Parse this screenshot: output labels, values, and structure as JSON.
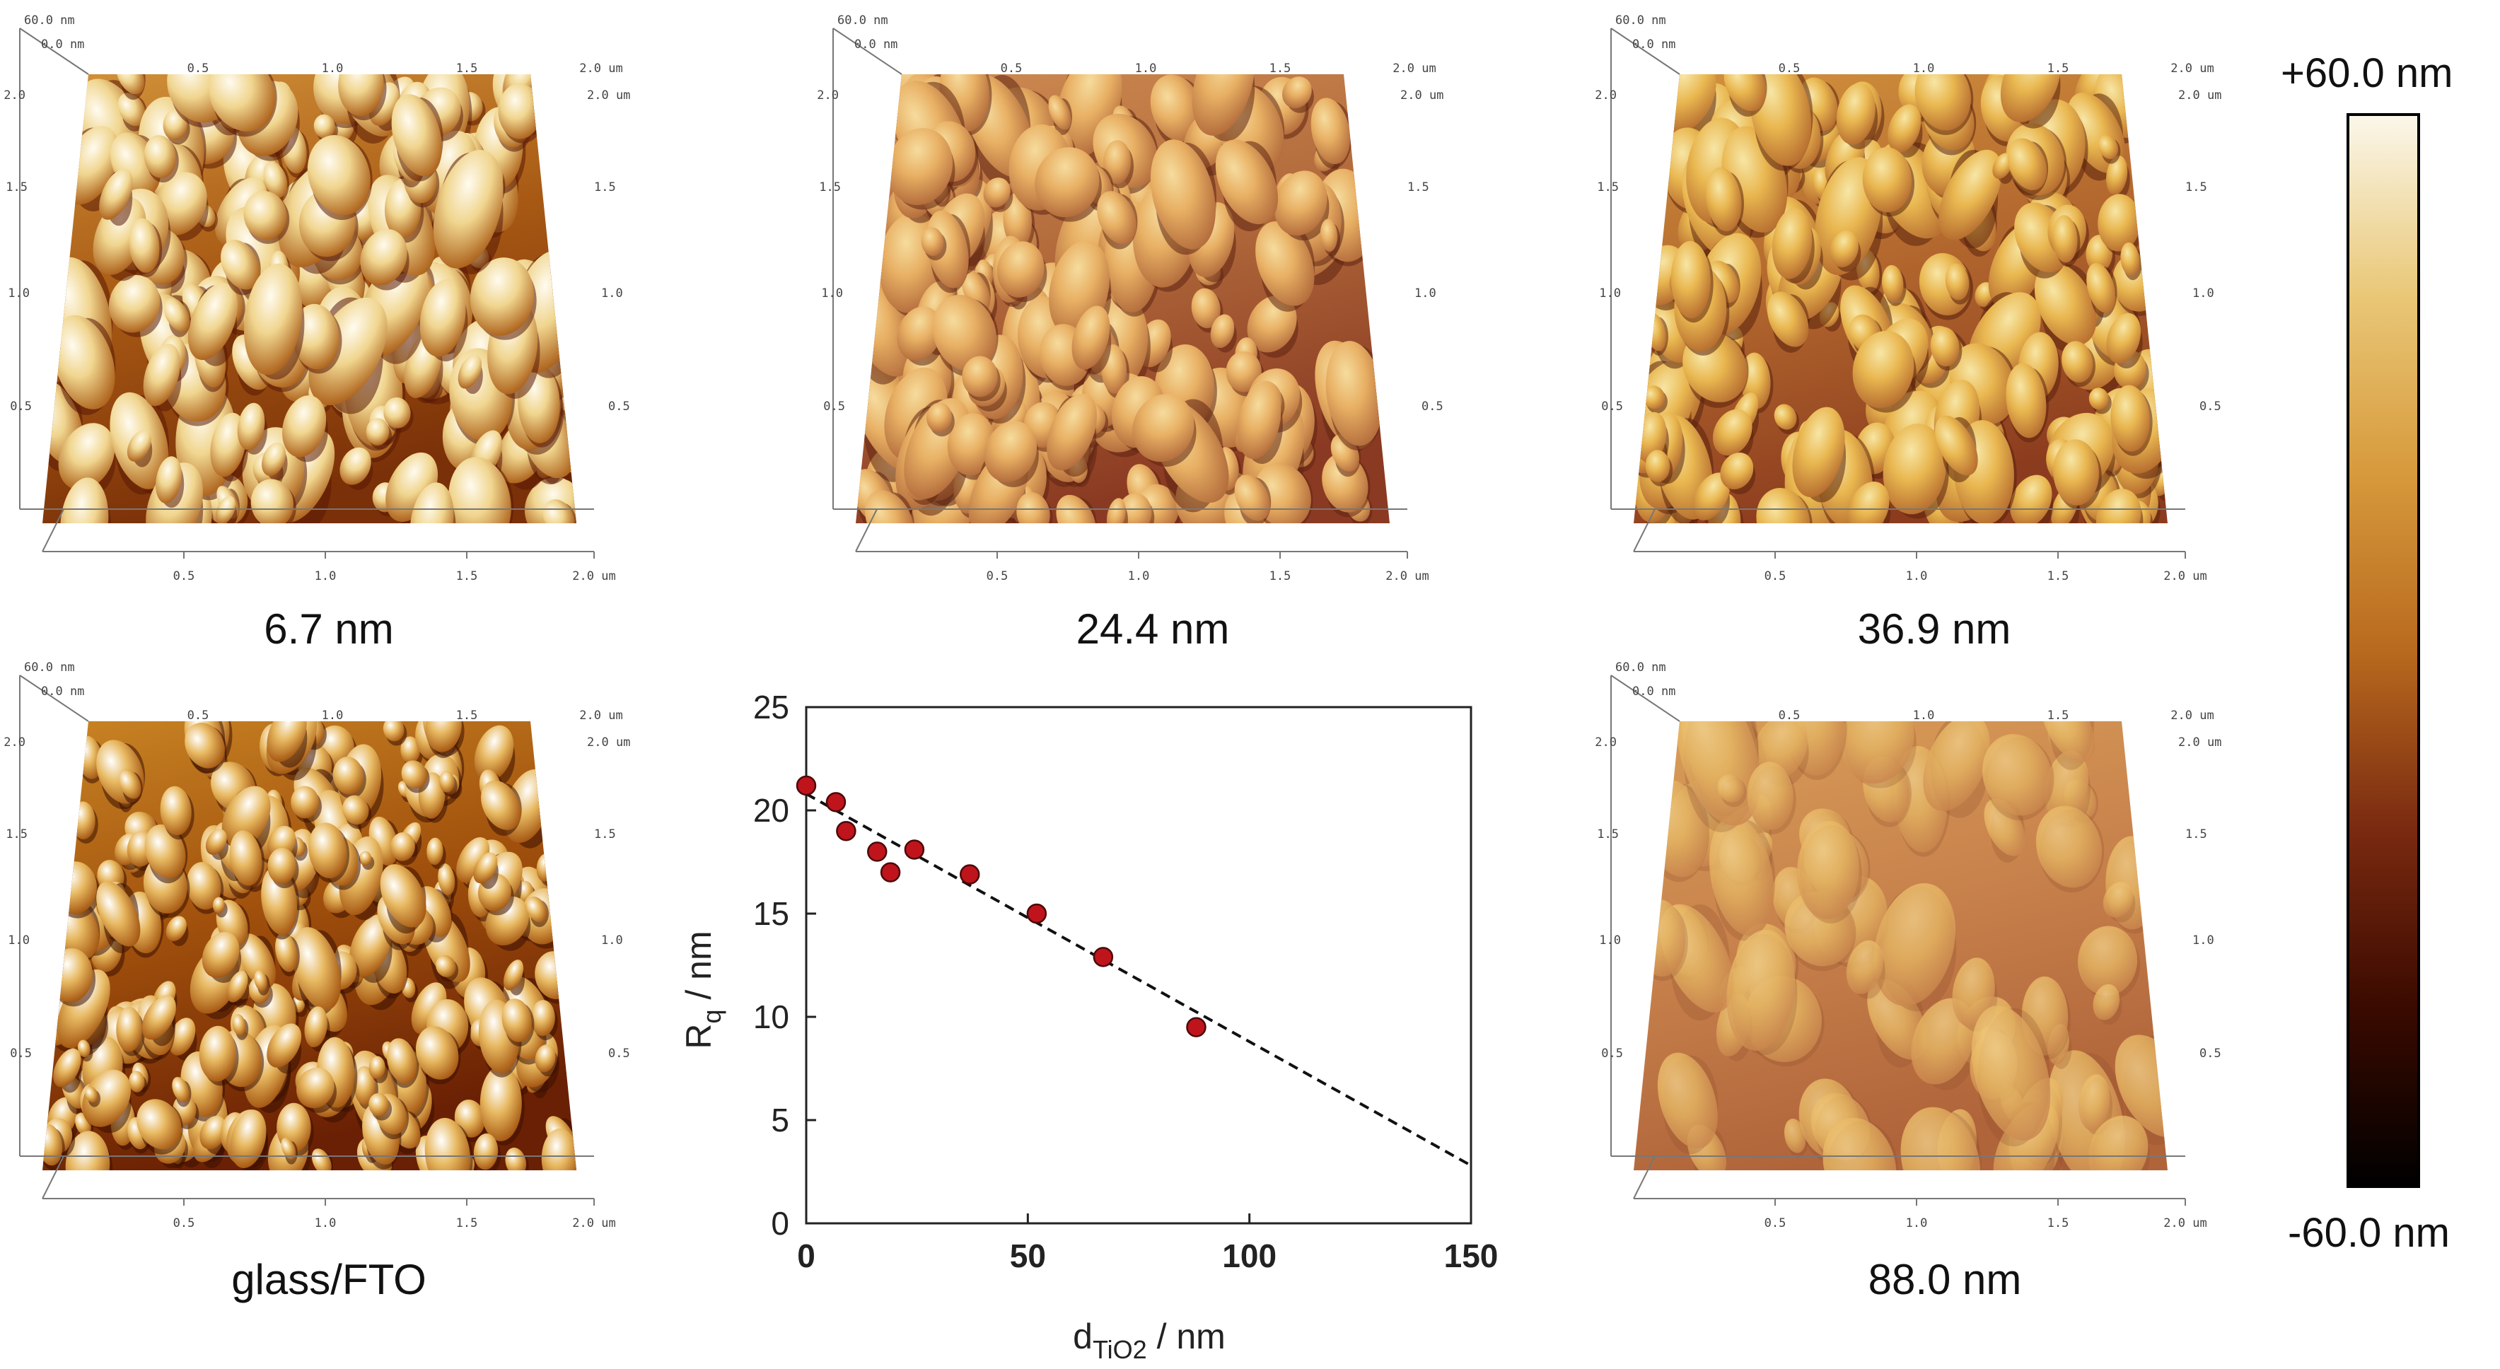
{
  "afm_panels": [
    {
      "id": "p67",
      "caption": "6.7 nm"
    },
    {
      "id": "p244",
      "caption": "24.4 nm"
    },
    {
      "id": "p369",
      "caption": "36.9 nm"
    },
    {
      "id": "pfto",
      "caption": "glass/FTO"
    },
    {
      "id": "p880",
      "caption": "88.0 nm"
    }
  ],
  "afm_axis": {
    "z_top": "60.0 nm",
    "z_zero": "0.0 nm",
    "y_ticks": [
      "0.5",
      "1.0",
      "1.5",
      "2.0"
    ],
    "y_unit": "um",
    "x_ticks": [
      "0.5",
      "1.0",
      "1.5",
      "2.0"
    ],
    "x_unit": "um"
  },
  "colorbar": {
    "max_label": "+60.0 nm",
    "min_label": "-60.0 nm",
    "colors": [
      "#000000",
      "#3a0a00",
      "#7a2a10",
      "#b86a1e",
      "#d79a3c",
      "#e9c878",
      "#fbf7ea"
    ]
  },
  "chart_data": {
    "type": "scatter",
    "title": "",
    "xlabel_main": "d",
    "xlabel_sub": "TiO2",
    "xlabel_unit": " / nm",
    "ylabel_main": "R",
    "ylabel_sub": "q",
    "ylabel_unit": " / nm",
    "xlim": [
      0,
      150
    ],
    "ylim": [
      0,
      25
    ],
    "x_ticks": [
      0,
      50,
      100,
      150
    ],
    "y_ticks": [
      0,
      5,
      10,
      15,
      20,
      25
    ],
    "points": [
      {
        "x": 0,
        "y": 21.2
      },
      {
        "x": 6.7,
        "y": 20.4
      },
      {
        "x": 9,
        "y": 19.0
      },
      {
        "x": 16,
        "y": 18.0
      },
      {
        "x": 19,
        "y": 17.0
      },
      {
        "x": 24.4,
        "y": 18.1
      },
      {
        "x": 36.9,
        "y": 16.9
      },
      {
        "x": 52,
        "y": 15.0
      },
      {
        "x": 67,
        "y": 12.9
      },
      {
        "x": 88,
        "y": 9.5
      }
    ],
    "fit_line": {
      "x": [
        0,
        150
      ],
      "y": [
        20.8,
        2.8
      ]
    },
    "marker_color": "#c0141c",
    "fit_color": "#111111",
    "grid": false
  }
}
